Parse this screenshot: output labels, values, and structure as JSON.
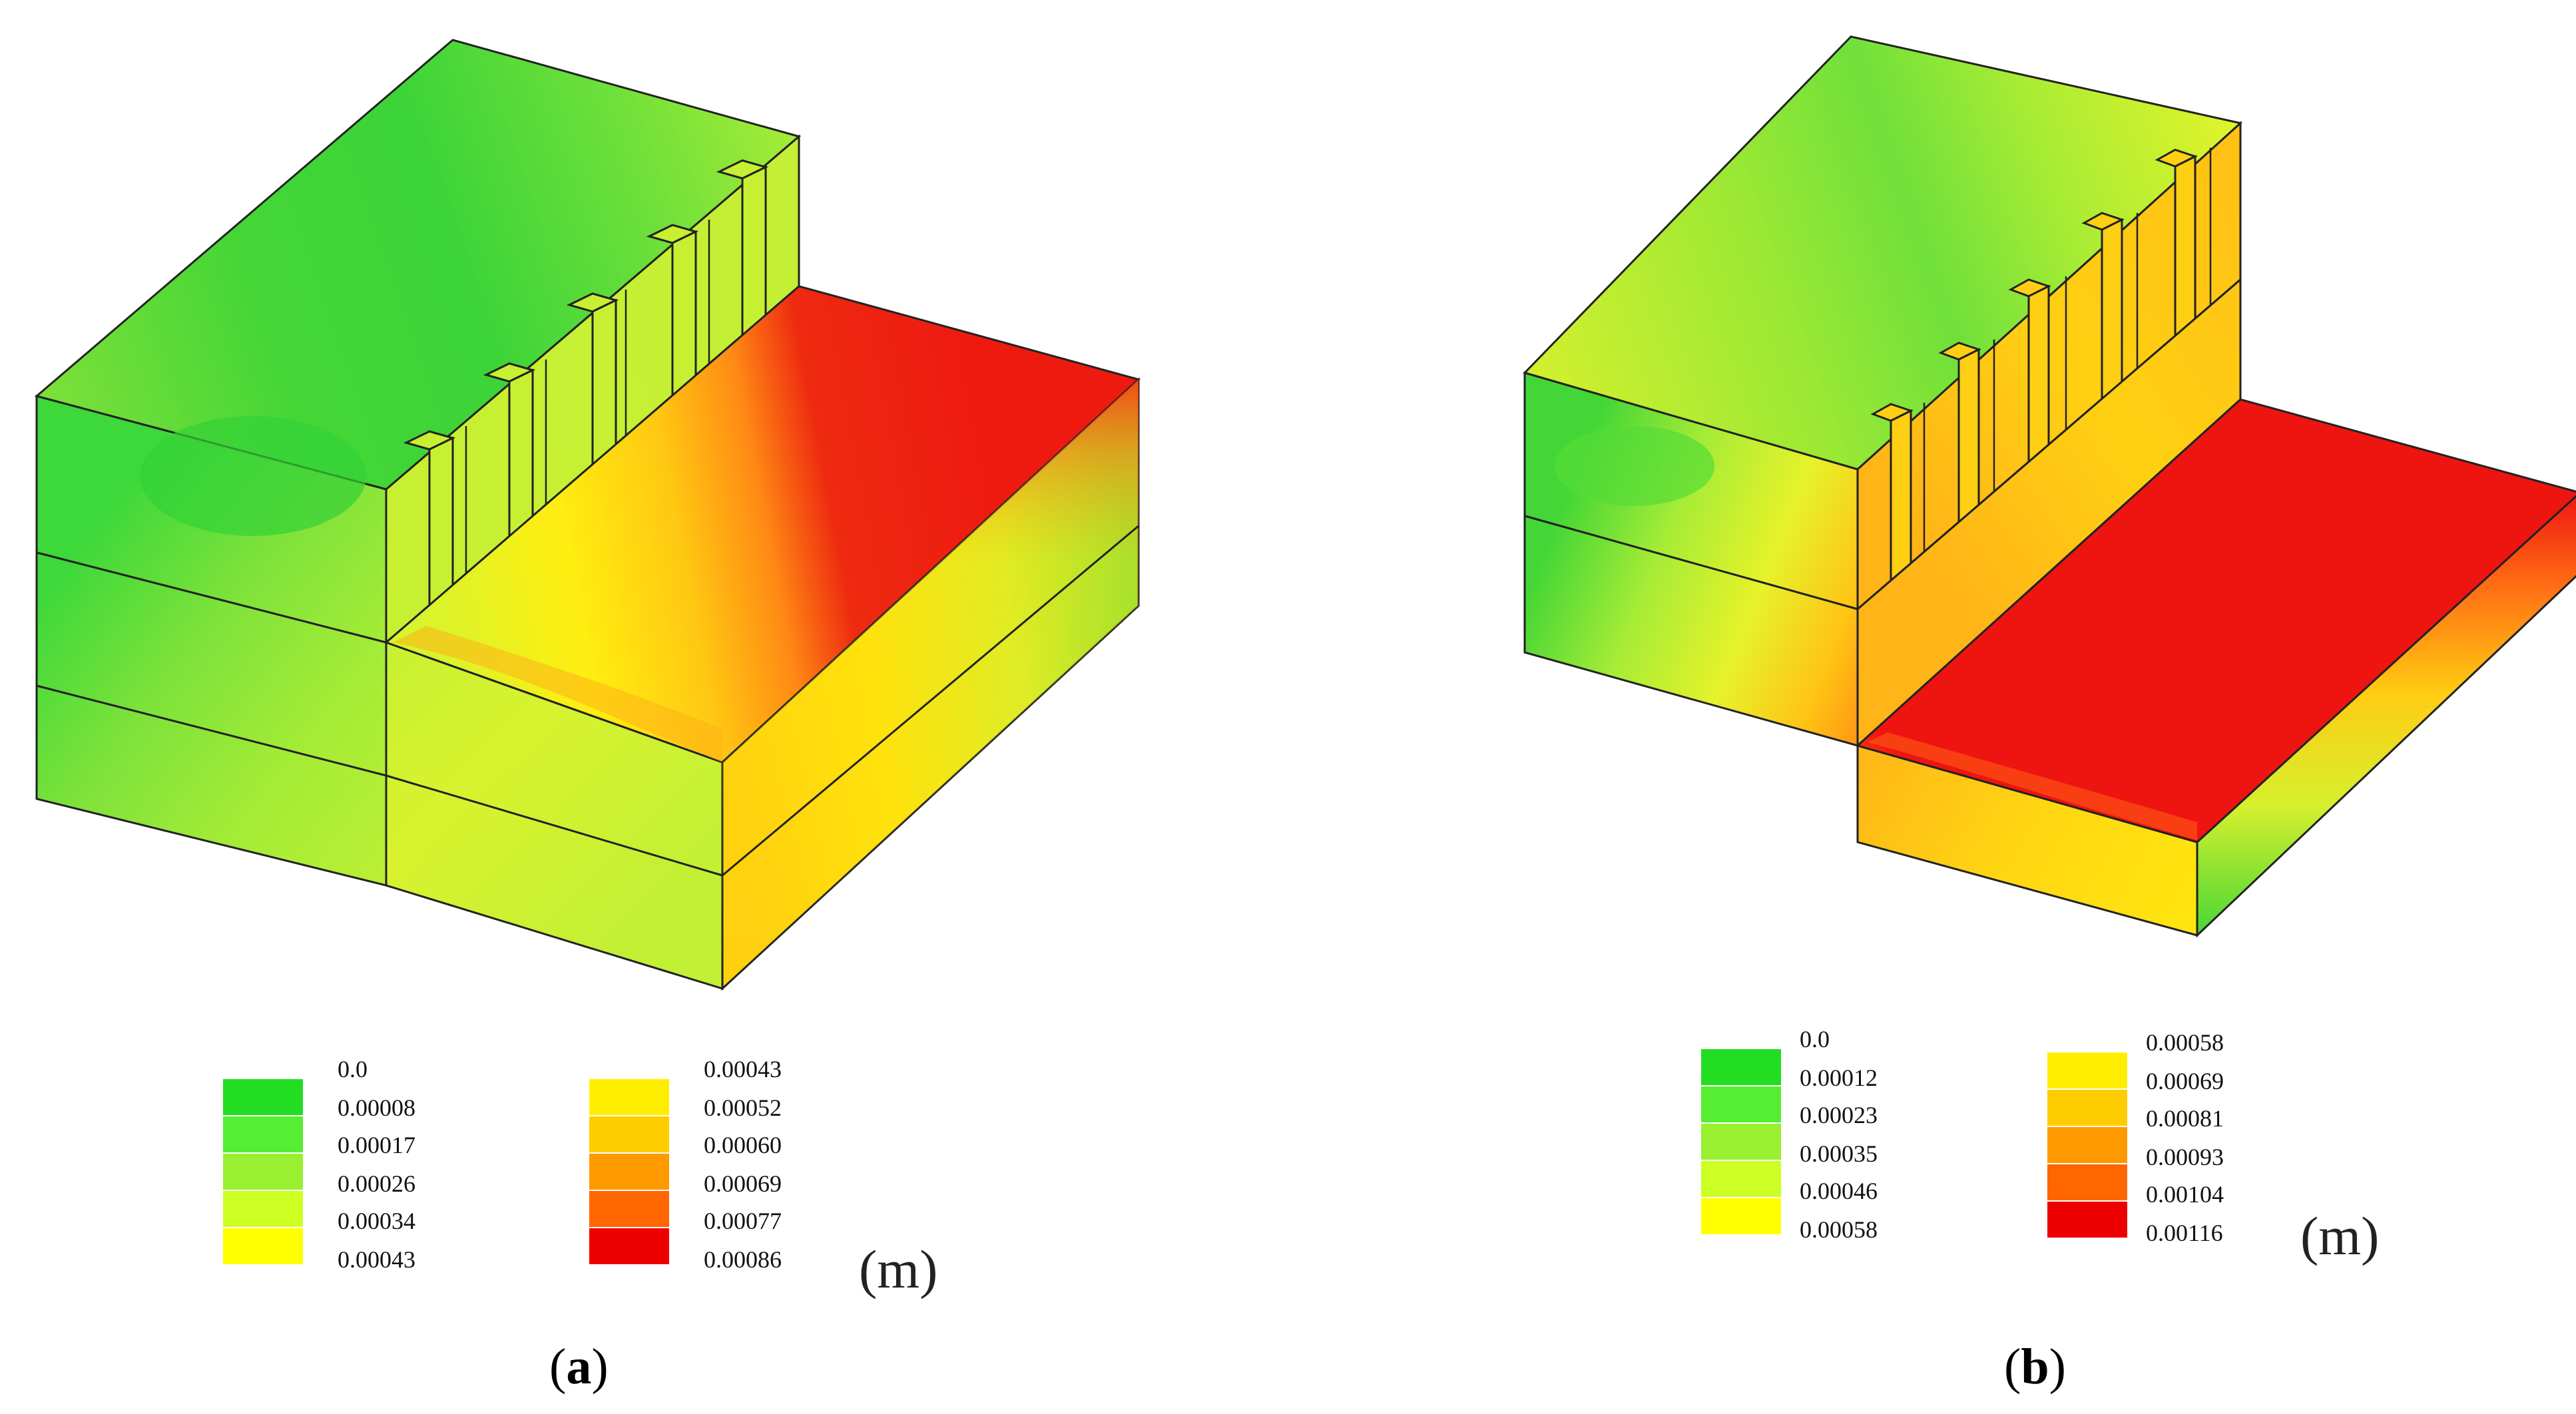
{
  "panels": [
    {
      "id": "a",
      "caption_open": "(",
      "caption_letter": "a",
      "caption_close": ")",
      "unit": "(m)",
      "legend_left": {
        "labels": [
          "0.0",
          "0.00008",
          "0.00017",
          "0.00026",
          "0.00034",
          "0.00043"
        ],
        "colors": [
          "#22dd22",
          "#55ee33",
          "#99f030",
          "#ccff22",
          "#ffff00"
        ]
      },
      "legend_right": {
        "labels": [
          "0.00043",
          "0.00052",
          "0.00060",
          "0.00069",
          "0.00077",
          "0.00086"
        ],
        "colors": [
          "#ffee00",
          "#ffcc00",
          "#ff9900",
          "#ff6600",
          "#ee0000"
        ]
      }
    },
    {
      "id": "b",
      "caption_open": "(",
      "caption_letter": "b",
      "caption_close": ")",
      "unit": "(m)",
      "legend_left": {
        "labels": [
          "0.0",
          "0.00012",
          "0.00023",
          "0.00035",
          "0.00046",
          "0.00058"
        ],
        "colors": [
          "#22dd22",
          "#55ee33",
          "#99f030",
          "#ccff22",
          "#ffff00"
        ]
      },
      "legend_right": {
        "labels": [
          "0.00058",
          "0.00069",
          "0.00081",
          "0.00093",
          "0.00104",
          "0.00116"
        ],
        "colors": [
          "#ffee00",
          "#ffcc00",
          "#ff9900",
          "#ff6600",
          "#ee0000"
        ]
      }
    }
  ]
}
